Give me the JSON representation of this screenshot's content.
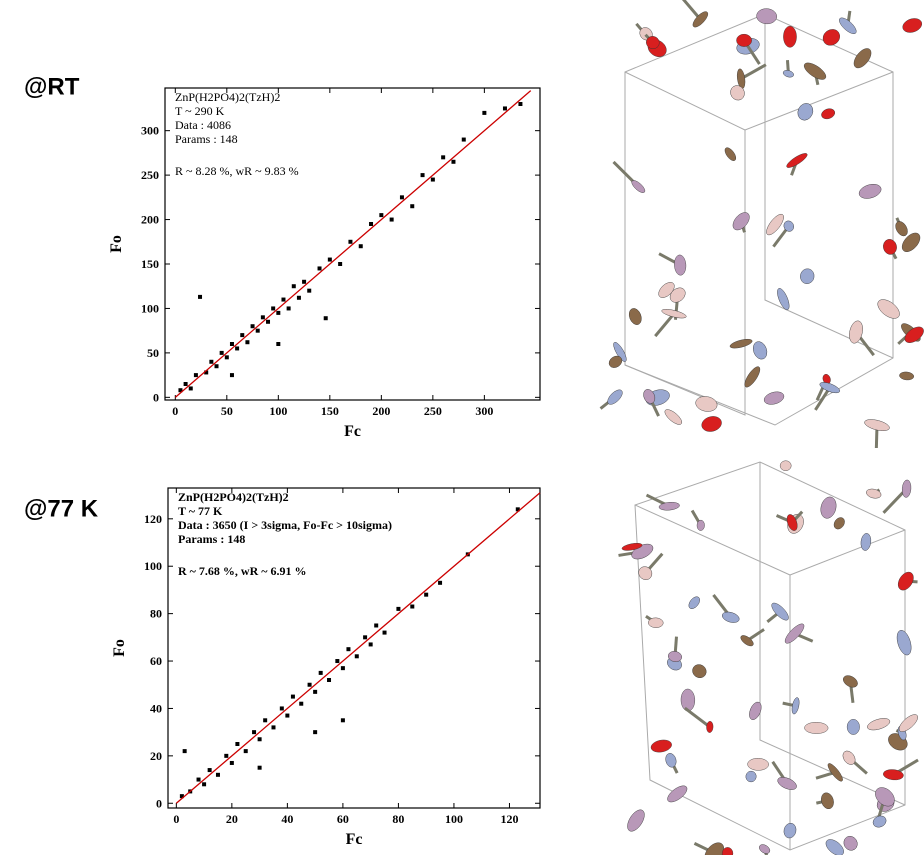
{
  "chart_data": [
    {
      "type": "scatter",
      "panel_label": "@RT",
      "xlabel": "Fc",
      "ylabel": "Fo",
      "annotation": [
        "ZnP(H2PO4)2(TzH)2",
        "T ~ 290 K",
        "Data : 4086",
        "Params : 148",
        "R ~ 8.28 %, wR ~ 9.83 %"
      ],
      "xlim": [
        -10,
        354
      ],
      "ylim": [
        -3,
        348
      ],
      "xticks": [
        0,
        50,
        100,
        150,
        200,
        250,
        300
      ],
      "yticks": [
        0,
        50,
        100,
        150,
        200,
        250,
        300
      ],
      "points": {
        "color": "#000000",
        "x": [
          5,
          10,
          15,
          20,
          24,
          30,
          35,
          40,
          45,
          50,
          55,
          60,
          65,
          70,
          75,
          80,
          85,
          90,
          95,
          100,
          105,
          110,
          115,
          120,
          125,
          130,
          140,
          146,
          150,
          160,
          170,
          180,
          190,
          200,
          210,
          220,
          230,
          240,
          250,
          260,
          270,
          280,
          300,
          320,
          335,
          55,
          100
        ],
        "y": [
          8,
          15,
          10,
          25,
          113,
          28,
          40,
          35,
          50,
          45,
          60,
          55,
          70,
          62,
          80,
          75,
          90,
          85,
          100,
          95,
          110,
          100,
          125,
          112,
          130,
          120,
          145,
          89,
          155,
          150,
          175,
          170,
          195,
          205,
          200,
          225,
          215,
          250,
          245,
          270,
          265,
          290,
          320,
          325,
          330,
          25,
          60
        ]
      },
      "fit": {
        "color": "#cc0000",
        "x": [
          0,
          345
        ],
        "y": [
          0,
          345
        ]
      }
    },
    {
      "type": "scatter",
      "panel_label": "@77 K",
      "xlabel": "Fc",
      "ylabel": "Fo",
      "annotation": [
        "ZnP(H2PO4)2(TzH)2",
        "T ~ 77 K",
        "Data : 3650 (I > 3sigma, Fo-Fc > 10sigma)",
        "Params : 148",
        "R ~ 7.68 %, wR ~ 6.91 %"
      ],
      "xlim": [
        -3,
        131
      ],
      "ylim": [
        -2,
        133
      ],
      "xticks": [
        0,
        20,
        40,
        60,
        80,
        100,
        120
      ],
      "yticks": [
        0,
        20,
        40,
        60,
        80,
        100,
        120
      ],
      "points": {
        "color": "#000000",
        "x": [
          2,
          3,
          5,
          8,
          10,
          12,
          15,
          18,
          20,
          22,
          25,
          28,
          30,
          32,
          35,
          38,
          40,
          42,
          45,
          48,
          50,
          52,
          55,
          58,
          60,
          62,
          65,
          68,
          70,
          72,
          75,
          80,
          85,
          90,
          95,
          105,
          123,
          30,
          50,
          60
        ],
        "y": [
          3,
          22,
          5,
          10,
          8,
          14,
          12,
          20,
          17,
          25,
          22,
          30,
          27,
          35,
          32,
          40,
          37,
          45,
          42,
          50,
          47,
          55,
          52,
          60,
          57,
          65,
          62,
          70,
          67,
          75,
          72,
          82,
          83,
          88,
          93,
          105,
          124,
          15,
          30,
          35
        ]
      },
      "fit": {
        "color": "#cc0000",
        "x": [
          0,
          131
        ],
        "y": [
          0,
          131
        ]
      }
    }
  ]
}
